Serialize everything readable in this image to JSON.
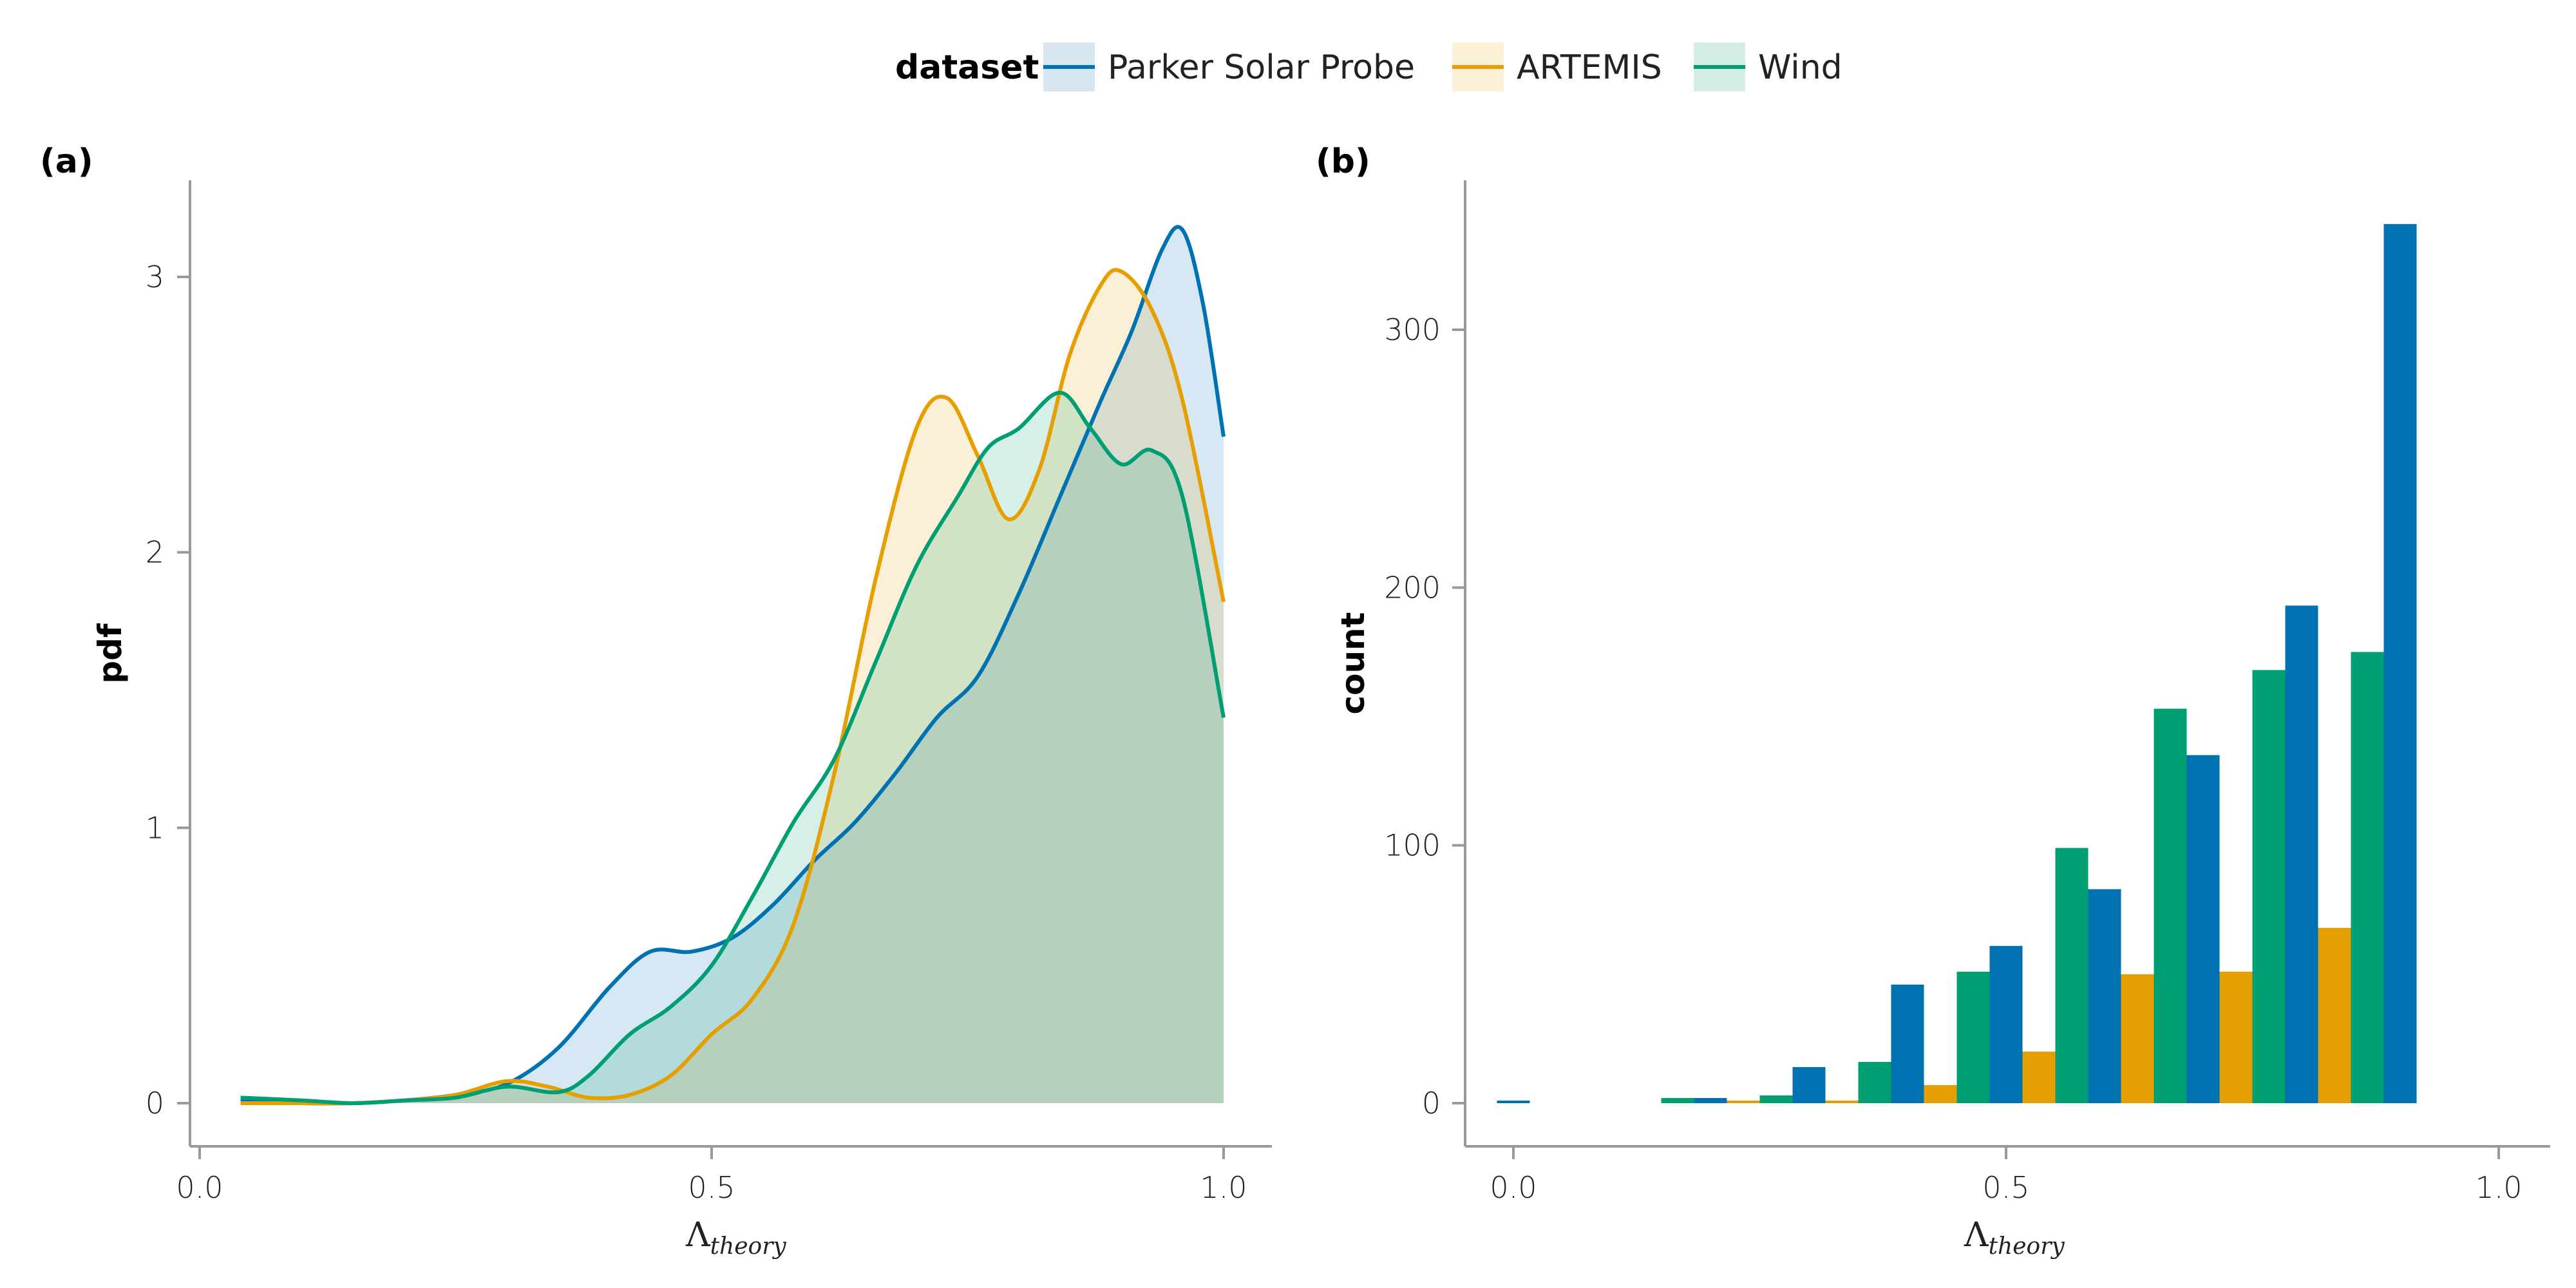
{
  "legend": {
    "title": "dataset",
    "entries": [
      {
        "label": "Parker Solar Probe",
        "color": "#0072b2",
        "fill": "#d6e7f2"
      },
      {
        "label": "ARTEMIS",
        "color": "#e69f00",
        "fill": "#fcf0d6"
      },
      {
        "label": "Wind",
        "color": "#009e73",
        "fill": "#d4eee5"
      }
    ]
  },
  "chart_data": [
    {
      "panel_label": "(a)",
      "type": "area",
      "xlabel": "Λ",
      "xlabel_sub": "theory",
      "ylabel": "pdf",
      "xlim": [
        0.0,
        1.0
      ],
      "ylim": [
        0,
        3.3
      ],
      "xticks": [
        "0.0",
        "0.5",
        "1.0"
      ],
      "yticks": [
        "0",
        "1",
        "2",
        "3"
      ],
      "series": [
        {
          "name": "Parker Solar Probe",
          "points": [
            [
              0.04,
              0.01
            ],
            [
              0.1,
              0.0
            ],
            [
              0.15,
              0.0
            ],
            [
              0.2,
              0.01
            ],
            [
              0.25,
              0.03
            ],
            [
              0.3,
              0.07
            ],
            [
              0.35,
              0.2
            ],
            [
              0.4,
              0.42
            ],
            [
              0.44,
              0.55
            ],
            [
              0.48,
              0.55
            ],
            [
              0.52,
              0.6
            ],
            [
              0.56,
              0.72
            ],
            [
              0.6,
              0.88
            ],
            [
              0.64,
              1.02
            ],
            [
              0.68,
              1.2
            ],
            [
              0.72,
              1.4
            ],
            [
              0.76,
              1.55
            ],
            [
              0.8,
              1.85
            ],
            [
              0.84,
              2.2
            ],
            [
              0.88,
              2.55
            ],
            [
              0.91,
              2.8
            ],
            [
              0.94,
              3.1
            ],
            [
              0.96,
              3.17
            ],
            [
              0.98,
              2.9
            ],
            [
              1.0,
              2.42
            ]
          ]
        },
        {
          "name": "ARTEMIS",
          "points": [
            [
              0.04,
              0.0
            ],
            [
              0.1,
              0.0
            ],
            [
              0.15,
              0.0
            ],
            [
              0.2,
              0.01
            ],
            [
              0.25,
              0.03
            ],
            [
              0.3,
              0.08
            ],
            [
              0.34,
              0.06
            ],
            [
              0.38,
              0.02
            ],
            [
              0.42,
              0.03
            ],
            [
              0.46,
              0.1
            ],
            [
              0.5,
              0.25
            ],
            [
              0.54,
              0.38
            ],
            [
              0.58,
              0.65
            ],
            [
              0.62,
              1.2
            ],
            [
              0.66,
              1.9
            ],
            [
              0.7,
              2.45
            ],
            [
              0.73,
              2.56
            ],
            [
              0.76,
              2.35
            ],
            [
              0.79,
              2.12
            ],
            [
              0.82,
              2.3
            ],
            [
              0.85,
              2.72
            ],
            [
              0.88,
              2.97
            ],
            [
              0.9,
              3.02
            ],
            [
              0.93,
              2.88
            ],
            [
              0.96,
              2.55
            ],
            [
              1.0,
              1.82
            ]
          ]
        },
        {
          "name": "Wind",
          "points": [
            [
              0.04,
              0.02
            ],
            [
              0.1,
              0.01
            ],
            [
              0.15,
              0.0
            ],
            [
              0.2,
              0.01
            ],
            [
              0.25,
              0.02
            ],
            [
              0.3,
              0.06
            ],
            [
              0.35,
              0.04
            ],
            [
              0.38,
              0.1
            ],
            [
              0.42,
              0.25
            ],
            [
              0.46,
              0.35
            ],
            [
              0.5,
              0.5
            ],
            [
              0.54,
              0.75
            ],
            [
              0.58,
              1.02
            ],
            [
              0.62,
              1.25
            ],
            [
              0.66,
              1.6
            ],
            [
              0.7,
              1.95
            ],
            [
              0.74,
              2.2
            ],
            [
              0.77,
              2.38
            ],
            [
              0.8,
              2.45
            ],
            [
              0.84,
              2.58
            ],
            [
              0.87,
              2.45
            ],
            [
              0.9,
              2.32
            ],
            [
              0.93,
              2.37
            ],
            [
              0.96,
              2.2
            ],
            [
              1.0,
              1.4
            ]
          ]
        }
      ]
    },
    {
      "panel_label": "(b)",
      "type": "bar",
      "xlabel": "Λ",
      "xlabel_sub": "theory",
      "ylabel": "count",
      "xlim": [
        0.0,
        1.0
      ],
      "ylim": [
        0,
        340
      ],
      "xticks": [
        "0.0",
        "0.5",
        "1.0"
      ],
      "yticks": [
        "0",
        "100",
        "200",
        "300"
      ],
      "bin_centers": [
        0.0,
        0.1,
        0.2,
        0.3,
        0.4,
        0.5,
        0.6,
        0.7,
        0.8,
        0.9
      ],
      "series": [
        {
          "name": "Parker Solar Probe",
          "values": [
            1,
            0,
            2,
            14,
            46,
            61,
            83,
            135,
            193,
            341
          ]
        },
        {
          "name": "ARTEMIS",
          "values": [
            0,
            0,
            1,
            1,
            7,
            20,
            50,
            51,
            68,
            0
          ]
        },
        {
          "name": "Wind",
          "values": [
            0,
            0,
            2,
            3,
            16,
            51,
            99,
            153,
            168,
            175
          ]
        }
      ]
    }
  ]
}
